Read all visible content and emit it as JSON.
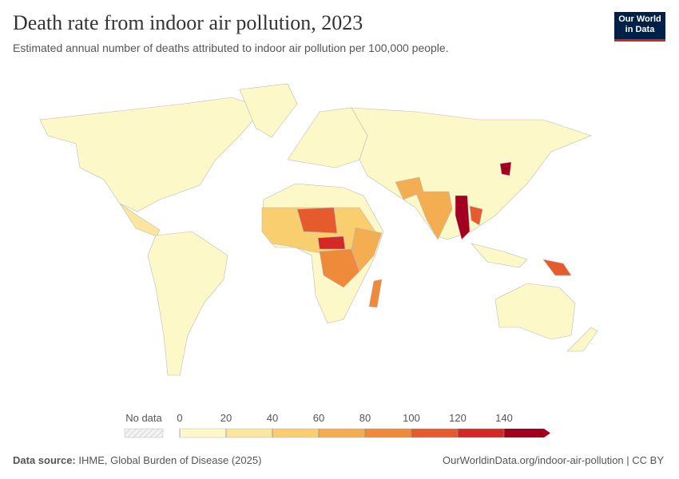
{
  "header": {
    "title": "Death rate from indoor air pollution, 2023",
    "subtitle": "Estimated annual number of deaths attributed to indoor air pollution per 100,000 people.",
    "logo": [
      "Our World",
      "in Data"
    ]
  },
  "legend": {
    "no_data_label": "No data",
    "ticks": [
      0,
      20,
      40,
      60,
      80,
      100,
      120,
      140
    ],
    "colors": [
      "#fdf8c8",
      "#fbe6a0",
      "#f8ce6e",
      "#f4ad50",
      "#ef8a3b",
      "#e65b2e",
      "#d42726",
      "#a3001f"
    ]
  },
  "footer": {
    "source_label": "Data source:",
    "source": "IHME, Global Burden of Disease (2025)",
    "url": "OurWorldinData.org/indoor-air-pollution | CC BY"
  }
}
